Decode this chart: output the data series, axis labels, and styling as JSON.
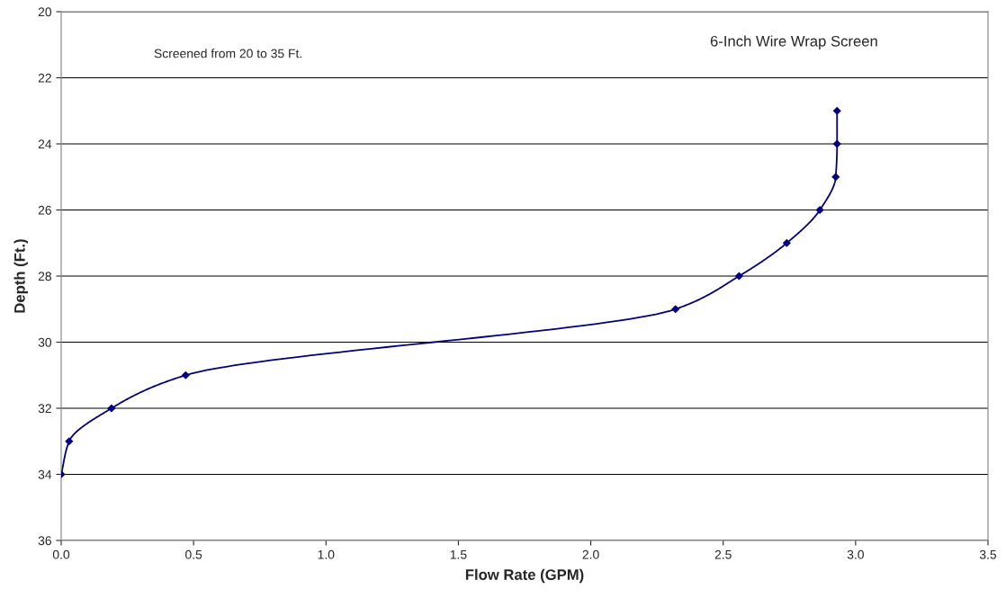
{
  "chart_data": {
    "type": "line",
    "xlabel": "Flow Rate (GPM)",
    "ylabel": "Depth (Ft.)",
    "annotations": [
      "Screened from 20 to 35 Ft.",
      "6-Inch Wire Wrap Screen"
    ],
    "x": [
      2.93,
      2.93,
      2.925,
      2.865,
      2.74,
      2.56,
      2.32,
      0.47,
      0.19,
      0.03,
      0.0
    ],
    "values": [
      23,
      24,
      25,
      26,
      27,
      28,
      29,
      31,
      32,
      33,
      34
    ],
    "color": "#000080",
    "marker": "diamond",
    "line_style": "solid",
    "xlim": [
      0,
      3.5
    ],
    "xticks": [
      {
        "value": 0,
        "label": "0.0"
      },
      {
        "value": 0.5,
        "label": "0.5"
      },
      {
        "value": 1,
        "label": "1.0"
      },
      {
        "value": 1.5,
        "label": "1.5"
      },
      {
        "value": 2,
        "label": "2.0"
      },
      {
        "value": 2.5,
        "label": "2.5"
      },
      {
        "value": 3,
        "label": "3.0"
      },
      {
        "value": 3.5,
        "label": "3.5"
      }
    ],
    "ylim": [
      36,
      20
    ],
    "yticks": [
      20,
      22,
      24,
      26,
      28,
      30,
      32,
      34,
      36
    ],
    "grid": "y"
  }
}
